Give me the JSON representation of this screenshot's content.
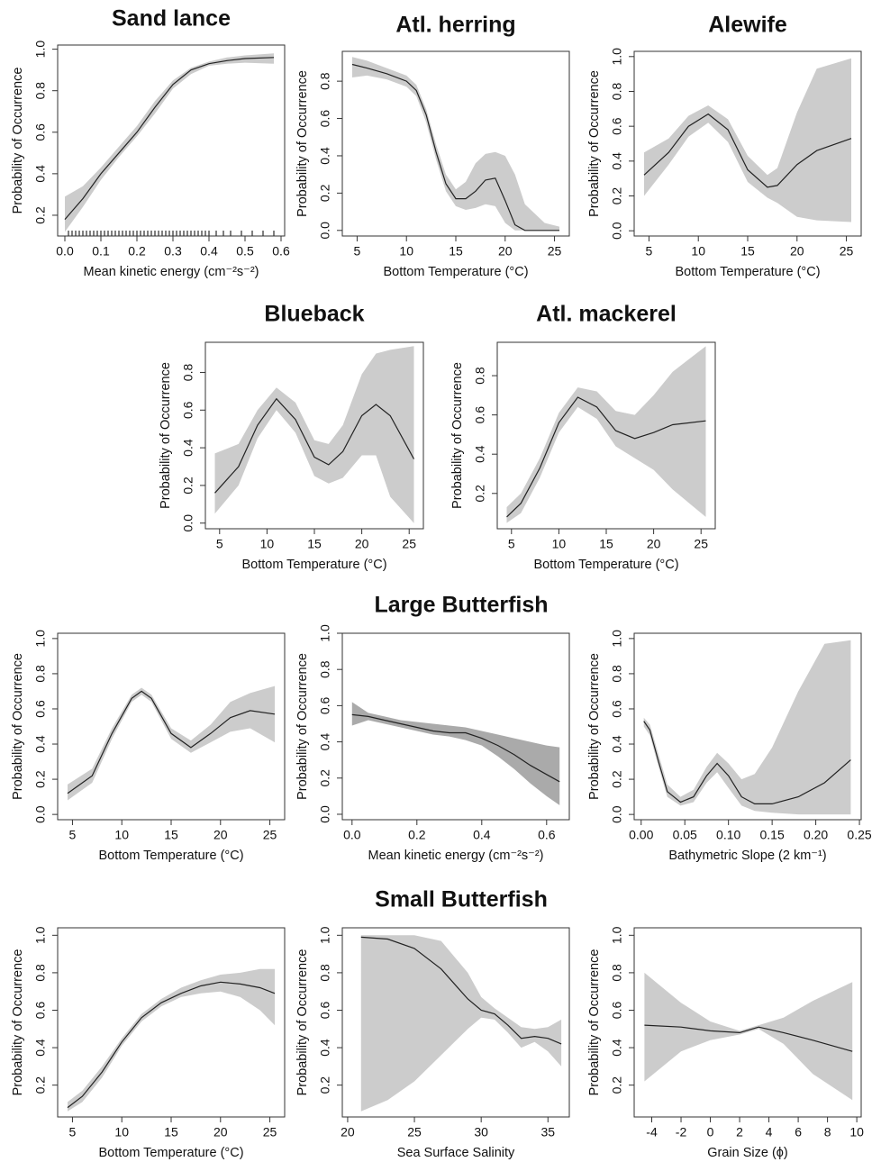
{
  "section_titles": [
    "Large Butterfish",
    "Small Butterfish"
  ],
  "chart_data": [
    {
      "type": "line",
      "title": "Sand lance",
      "xlabel": "Mean kinetic energy (cm⁻²s⁻²)",
      "ylabel": "Probability of Occurrence",
      "color": "#222222",
      "band_color": "#cccccc",
      "x": [
        0,
        0.05,
        0.1,
        0.15,
        0.2,
        0.25,
        0.3,
        0.35,
        0.4,
        0.45,
        0.5,
        0.58
      ],
      "values": [
        0.18,
        0.28,
        0.4,
        0.5,
        0.6,
        0.72,
        0.83,
        0.9,
        0.93,
        0.945,
        0.955,
        0.96
      ],
      "upper": [
        0.29,
        0.34,
        0.43,
        0.53,
        0.63,
        0.75,
        0.85,
        0.91,
        0.94,
        0.96,
        0.97,
        0.98
      ],
      "lower": [
        0.12,
        0.24,
        0.37,
        0.48,
        0.58,
        0.69,
        0.81,
        0.88,
        0.92,
        0.93,
        0.935,
        0.93
      ],
      "rug": [
        0.01,
        0.02,
        0.03,
        0.04,
        0.05,
        0.06,
        0.07,
        0.08,
        0.09,
        0.1,
        0.11,
        0.12,
        0.13,
        0.14,
        0.15,
        0.16,
        0.17,
        0.18,
        0.19,
        0.2,
        0.21,
        0.22,
        0.23,
        0.24,
        0.25,
        0.26,
        0.27,
        0.28,
        0.29,
        0.3,
        0.31,
        0.32,
        0.33,
        0.34,
        0.35,
        0.36,
        0.37,
        0.38,
        0.39,
        0.4,
        0.42,
        0.44,
        0.46,
        0.49,
        0.52,
        0.55,
        0.58
      ],
      "xlim": [
        -0.02,
        0.61
      ],
      "ylim": [
        0.1,
        1.02
      ],
      "xticks": [
        {
          "value": 0,
          "label": "0.0"
        },
        0.1,
        0.2,
        0.3,
        0.4,
        0.5,
        0.6
      ],
      "yticks": [
        0.2,
        0.4,
        0.6,
        0.8,
        {
          "value": 1,
          "label": "1.0"
        }
      ]
    },
    {
      "type": "line",
      "title": "Atl. herring",
      "xlabel": "Bottom Temperature (°C)",
      "ylabel": "Probability of Occurrence",
      "color": "#222222",
      "band_color": "#cccccc",
      "x": [
        4.5,
        6,
        8,
        10,
        11,
        12,
        13,
        14,
        15,
        16,
        17,
        18,
        19,
        20,
        21,
        22,
        24,
        25.5
      ],
      "values": [
        0.89,
        0.87,
        0.84,
        0.8,
        0.75,
        0.62,
        0.42,
        0.25,
        0.17,
        0.17,
        0.21,
        0.27,
        0.28,
        0.16,
        0.03,
        0,
        0,
        0
      ],
      "upper": [
        0.93,
        0.91,
        0.87,
        0.83,
        0.78,
        0.65,
        0.46,
        0.3,
        0.22,
        0.26,
        0.36,
        0.41,
        0.42,
        0.4,
        0.3,
        0.14,
        0.04,
        0.02
      ],
      "lower": [
        0.82,
        0.83,
        0.81,
        0.77,
        0.72,
        0.58,
        0.38,
        0.21,
        0.13,
        0.11,
        0.12,
        0.14,
        0.13,
        0.04,
        0,
        0,
        0,
        0
      ],
      "xlim": [
        3.5,
        26.5
      ],
      "ylim": [
        -0.03,
        0.96
      ],
      "xticks": [
        5,
        10,
        15,
        20,
        25
      ],
      "yticks": [
        {
          "value": 0,
          "label": "0.0"
        },
        0.2,
        0.4,
        0.6,
        0.8
      ]
    },
    {
      "type": "line",
      "title": "Alewife",
      "xlabel": "Bottom Temperature (°C)",
      "ylabel": "Probability of Occurrence",
      "color": "#222222",
      "band_color": "#cccccc",
      "x": [
        4.5,
        7,
        9,
        11,
        13,
        15,
        17,
        18,
        20,
        22,
        25.5
      ],
      "values": [
        0.32,
        0.45,
        0.6,
        0.67,
        0.58,
        0.35,
        0.25,
        0.26,
        0.38,
        0.46,
        0.53
      ],
      "upper": [
        0.45,
        0.53,
        0.66,
        0.72,
        0.64,
        0.43,
        0.32,
        0.36,
        0.68,
        0.93,
        0.99
      ],
      "lower": [
        0.2,
        0.38,
        0.54,
        0.62,
        0.51,
        0.28,
        0.19,
        0.16,
        0.08,
        0.06,
        0.05
      ],
      "xlim": [
        3.5,
        26.5
      ],
      "ylim": [
        -0.03,
        1.03
      ],
      "xticks": [
        5,
        10,
        15,
        20,
        25
      ],
      "yticks": [
        {
          "value": 0,
          "label": "0.0"
        },
        0.2,
        0.4,
        0.6,
        0.8,
        {
          "value": 1,
          "label": "1.0"
        }
      ]
    },
    {
      "type": "line",
      "title": "Blueback",
      "xlabel": "Bottom Temperature (°C)",
      "ylabel": "Probability of Occurrence",
      "color": "#222222",
      "band_color": "#cccccc",
      "x": [
        4.5,
        7,
        9,
        11,
        13,
        15,
        16.5,
        18,
        20,
        21.5,
        23,
        25.5
      ],
      "values": [
        0.16,
        0.3,
        0.52,
        0.66,
        0.55,
        0.35,
        0.31,
        0.38,
        0.57,
        0.63,
        0.57,
        0.34
      ],
      "upper": [
        0.37,
        0.42,
        0.6,
        0.72,
        0.64,
        0.44,
        0.42,
        0.52,
        0.79,
        0.9,
        0.92,
        0.94
      ],
      "lower": [
        0.05,
        0.2,
        0.45,
        0.6,
        0.48,
        0.25,
        0.21,
        0.24,
        0.36,
        0.36,
        0.14,
        0
      ],
      "xlim": [
        3.5,
        26.5
      ],
      "ylim": [
        -0.03,
        0.96
      ],
      "xticks": [
        5,
        10,
        15,
        20,
        25
      ],
      "yticks": [
        {
          "value": 0,
          "label": "0.0"
        },
        0.2,
        0.4,
        0.6,
        0.8
      ]
    },
    {
      "type": "line",
      "title": "Atl. mackerel",
      "xlabel": "Bottom Temperature (°C)",
      "ylabel": "Probability of Occurrence",
      "color": "#222222",
      "band_color": "#cccccc",
      "x": [
        4.5,
        6,
        8,
        10,
        12,
        14,
        16,
        18,
        20,
        22,
        25.5
      ],
      "values": [
        0.08,
        0.15,
        0.33,
        0.56,
        0.69,
        0.64,
        0.52,
        0.48,
        0.51,
        0.55,
        0.57
      ],
      "upper": [
        0.13,
        0.2,
        0.38,
        0.61,
        0.74,
        0.72,
        0.62,
        0.6,
        0.7,
        0.82,
        0.95
      ],
      "lower": [
        0.05,
        0.1,
        0.28,
        0.51,
        0.64,
        0.58,
        0.44,
        0.38,
        0.32,
        0.22,
        0.08
      ],
      "xlim": [
        3.5,
        26.5
      ],
      "ylim": [
        0.02,
        0.97
      ],
      "xticks": [
        5,
        10,
        15,
        20,
        25
      ],
      "yticks": [
        0.2,
        0.4,
        0.6,
        0.8
      ]
    },
    {
      "type": "line",
      "xlabel": "Bottom Temperature (°C)",
      "ylabel": "Probability of Occurrence",
      "color": "#222222",
      "band_color": "#cccccc",
      "x": [
        4.5,
        7,
        9,
        11,
        12,
        13,
        15,
        17,
        19,
        21,
        23,
        25.5
      ],
      "values": [
        0.12,
        0.22,
        0.46,
        0.66,
        0.7,
        0.66,
        0.46,
        0.38,
        0.46,
        0.55,
        0.59,
        0.57
      ],
      "upper": [
        0.17,
        0.26,
        0.49,
        0.68,
        0.72,
        0.68,
        0.49,
        0.42,
        0.51,
        0.64,
        0.69,
        0.73
      ],
      "lower": [
        0.08,
        0.18,
        0.43,
        0.64,
        0.68,
        0.64,
        0.43,
        0.35,
        0.41,
        0.47,
        0.49,
        0.41
      ],
      "xlim": [
        3.5,
        26.5
      ],
      "ylim": [
        -0.03,
        1.03
      ],
      "xticks": [
        5,
        10,
        15,
        20,
        25
      ],
      "yticks": [
        {
          "value": 0,
          "label": "0.0"
        },
        0.2,
        0.4,
        0.6,
        0.8,
        {
          "value": 1,
          "label": "1.0"
        }
      ]
    },
    {
      "type": "line",
      "xlabel": "Mean kinetic energy (cm⁻²s⁻²)",
      "ylabel": "Probability of Occurrence",
      "color": "#222222",
      "band_color": "#aaaaaa",
      "x": [
        0,
        0.05,
        0.1,
        0.15,
        0.2,
        0.25,
        0.3,
        0.35,
        0.4,
        0.45,
        0.5,
        0.55,
        0.6,
        0.64
      ],
      "values": [
        0.55,
        0.54,
        0.52,
        0.5,
        0.48,
        0.46,
        0.45,
        0.45,
        0.42,
        0.38,
        0.33,
        0.27,
        0.22,
        0.18
      ],
      "upper": [
        0.62,
        0.56,
        0.54,
        0.52,
        0.51,
        0.5,
        0.49,
        0.48,
        0.46,
        0.44,
        0.42,
        0.4,
        0.38,
        0.37
      ],
      "lower": [
        0.49,
        0.52,
        0.5,
        0.48,
        0.46,
        0.44,
        0.43,
        0.41,
        0.38,
        0.32,
        0.25,
        0.17,
        0.1,
        0.05
      ],
      "xlim": [
        -0.03,
        0.67
      ],
      "ylim": [
        -0.03,
        1.0
      ],
      "xticks": [
        {
          "value": 0,
          "label": "0.0"
        },
        0.2,
        0.4,
        0.6
      ],
      "yticks": [
        {
          "value": 0,
          "label": "0.0"
        },
        0.2,
        0.4,
        0.6,
        0.8,
        {
          "value": 1,
          "label": "1.0"
        }
      ]
    },
    {
      "type": "line",
      "xlabel": "Bathymetric Slope (2 km⁻¹)",
      "ylabel": "Probability of Occurrence",
      "color": "#222222",
      "band_color": "#cccccc",
      "x": [
        0.003,
        0.01,
        0.02,
        0.03,
        0.045,
        0.06,
        0.075,
        0.087,
        0.1,
        0.115,
        0.13,
        0.15,
        0.18,
        0.21,
        0.24
      ],
      "values": [
        0.53,
        0.48,
        0.3,
        0.13,
        0.07,
        0.1,
        0.22,
        0.29,
        0.22,
        0.1,
        0.06,
        0.06,
        0.1,
        0.18,
        0.31
      ],
      "upper": [
        0.55,
        0.51,
        0.34,
        0.17,
        0.1,
        0.14,
        0.27,
        0.35,
        0.29,
        0.2,
        0.23,
        0.38,
        0.7,
        0.97,
        0.99
      ],
      "lower": [
        0.5,
        0.45,
        0.27,
        0.1,
        0.05,
        0.07,
        0.18,
        0.24,
        0.15,
        0.05,
        0.02,
        0.01,
        0,
        0,
        0
      ],
      "xlim": [
        -0.008,
        0.252
      ],
      "ylim": [
        -0.03,
        1.03
      ],
      "xticks": [
        {
          "value": 0,
          "label": "0.00"
        },
        {
          "value": 0.05,
          "label": "0.05"
        },
        {
          "value": 0.1,
          "label": "0.10"
        },
        {
          "value": 0.15,
          "label": "0.15"
        },
        {
          "value": 0.2,
          "label": "0.20"
        },
        {
          "value": 0.25,
          "label": "0.25"
        }
      ],
      "yticks": [
        {
          "value": 0,
          "label": "0.0"
        },
        0.2,
        0.4,
        0.6,
        0.8,
        {
          "value": 1,
          "label": "1.0"
        }
      ]
    },
    {
      "type": "line",
      "xlabel": "Bottom Temperature (°C)",
      "ylabel": "Probability of Occurrence",
      "color": "#222222",
      "band_color": "#cccccc",
      "x": [
        4.5,
        6,
        8,
        10,
        12,
        14,
        16,
        18,
        20,
        22,
        24,
        25.5
      ],
      "values": [
        0.08,
        0.14,
        0.27,
        0.43,
        0.56,
        0.64,
        0.69,
        0.73,
        0.75,
        0.74,
        0.72,
        0.69
      ],
      "upper": [
        0.11,
        0.17,
        0.3,
        0.45,
        0.58,
        0.66,
        0.72,
        0.76,
        0.79,
        0.8,
        0.82,
        0.82
      ],
      "lower": [
        0.06,
        0.11,
        0.24,
        0.41,
        0.54,
        0.62,
        0.67,
        0.69,
        0.7,
        0.67,
        0.6,
        0.52
      ],
      "xlim": [
        3.5,
        26.5
      ],
      "ylim": [
        0.03,
        1.04
      ],
      "xticks": [
        5,
        10,
        15,
        20,
        25
      ],
      "yticks": [
        0.2,
        0.4,
        0.6,
        0.8,
        {
          "value": 1,
          "label": "1.0"
        }
      ]
    },
    {
      "type": "line",
      "xlabel": "Sea Surface Salinity",
      "ylabel": "Probability of Occurrence",
      "color": "#222222",
      "band_color": "#cccccc",
      "x": [
        21,
        23,
        25,
        27,
        29,
        30,
        31,
        32,
        33,
        34,
        35,
        36
      ],
      "values": [
        0.99,
        0.98,
        0.93,
        0.82,
        0.66,
        0.6,
        0.58,
        0.52,
        0.45,
        0.46,
        0.45,
        0.42
      ],
      "upper": [
        1,
        1,
        1,
        0.97,
        0.8,
        0.67,
        0.61,
        0.56,
        0.51,
        0.5,
        0.51,
        0.55
      ],
      "lower": [
        0.06,
        0.12,
        0.22,
        0.36,
        0.5,
        0.56,
        0.55,
        0.48,
        0.4,
        0.43,
        0.38,
        0.3
      ],
      "xlim": [
        19.6,
        36.6
      ],
      "ylim": [
        0.03,
        1.04
      ],
      "xticks": [
        20,
        25,
        30,
        35
      ],
      "yticks": [
        0.2,
        0.4,
        0.6,
        0.8,
        {
          "value": 1,
          "label": "1.0"
        }
      ]
    },
    {
      "type": "line",
      "xlabel": "Grain Size (ϕ)",
      "ylabel": "Probability of Occurrence",
      "color": "#222222",
      "band_color": "#cccccc",
      "x": [
        -4.5,
        -2,
        0,
        2,
        3.3,
        5,
        7,
        9.7
      ],
      "values": [
        0.52,
        0.51,
        0.49,
        0.48,
        0.51,
        0.48,
        0.44,
        0.38
      ],
      "upper": [
        0.8,
        0.64,
        0.54,
        0.49,
        0.52,
        0.56,
        0.65,
        0.75
      ],
      "lower": [
        0.22,
        0.38,
        0.44,
        0.47,
        0.5,
        0.42,
        0.26,
        0.12
      ],
      "xlim": [
        -5.2,
        10.3
      ],
      "ylim": [
        0.03,
        1.04
      ],
      "xticks": [
        -4,
        -2,
        0,
        2,
        4,
        6,
        8,
        10
      ],
      "yticks": [
        0.2,
        0.4,
        0.6,
        0.8,
        {
          "value": 1,
          "label": "1.0"
        }
      ]
    }
  ]
}
